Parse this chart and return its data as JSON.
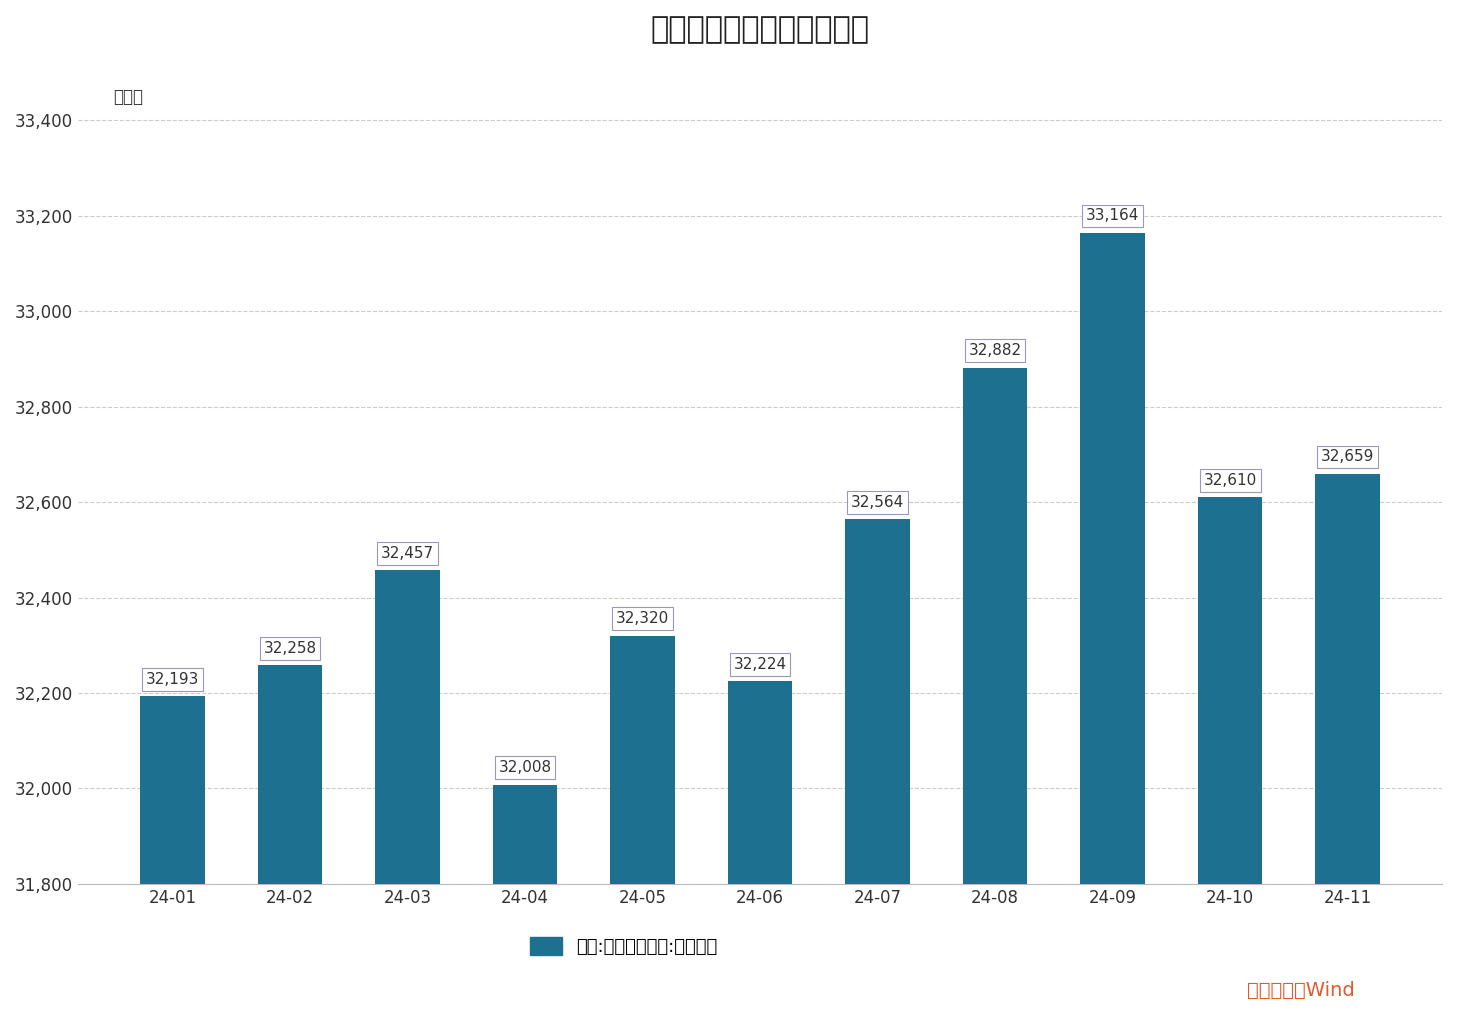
{
  "title": "我国外汇储备规模变化情况",
  "ylabel": "亿美元",
  "categories": [
    "24-01",
    "24-02",
    "24-03",
    "24-04",
    "24-05",
    "24-06",
    "24-07",
    "24-08",
    "24-09",
    "24-10",
    "24-11"
  ],
  "values": [
    32193,
    32258,
    32457,
    32008,
    32320,
    32224,
    32564,
    32882,
    33164,
    32610,
    32659
  ],
  "bar_color": "#1e7090",
  "label_values": [
    "32,193",
    "32,258",
    "32,457",
    "32,008",
    "32,320",
    "32,224",
    "32,564",
    "32,882",
    "33,164",
    "32,610",
    "32,659"
  ],
  "ylim_min": 31800,
  "ylim_max": 33500,
  "yticks": [
    31800,
    32000,
    32200,
    32400,
    32600,
    32800,
    33000,
    33200,
    33400
  ],
  "ytick_labels": [
    "31,800",
    "32,000",
    "32,200",
    "32,400",
    "32,600",
    "32,800",
    "33,000",
    "33,200",
    "33,400"
  ],
  "legend_label": "中国:官方储备资产:外汇储备",
  "source_text": "数据来源：Wind",
  "source_color": "#e05a2b",
  "background_color": "#ffffff",
  "title_fontsize": 22,
  "label_fontsize": 11,
  "axis_fontsize": 12,
  "legend_fontsize": 13
}
